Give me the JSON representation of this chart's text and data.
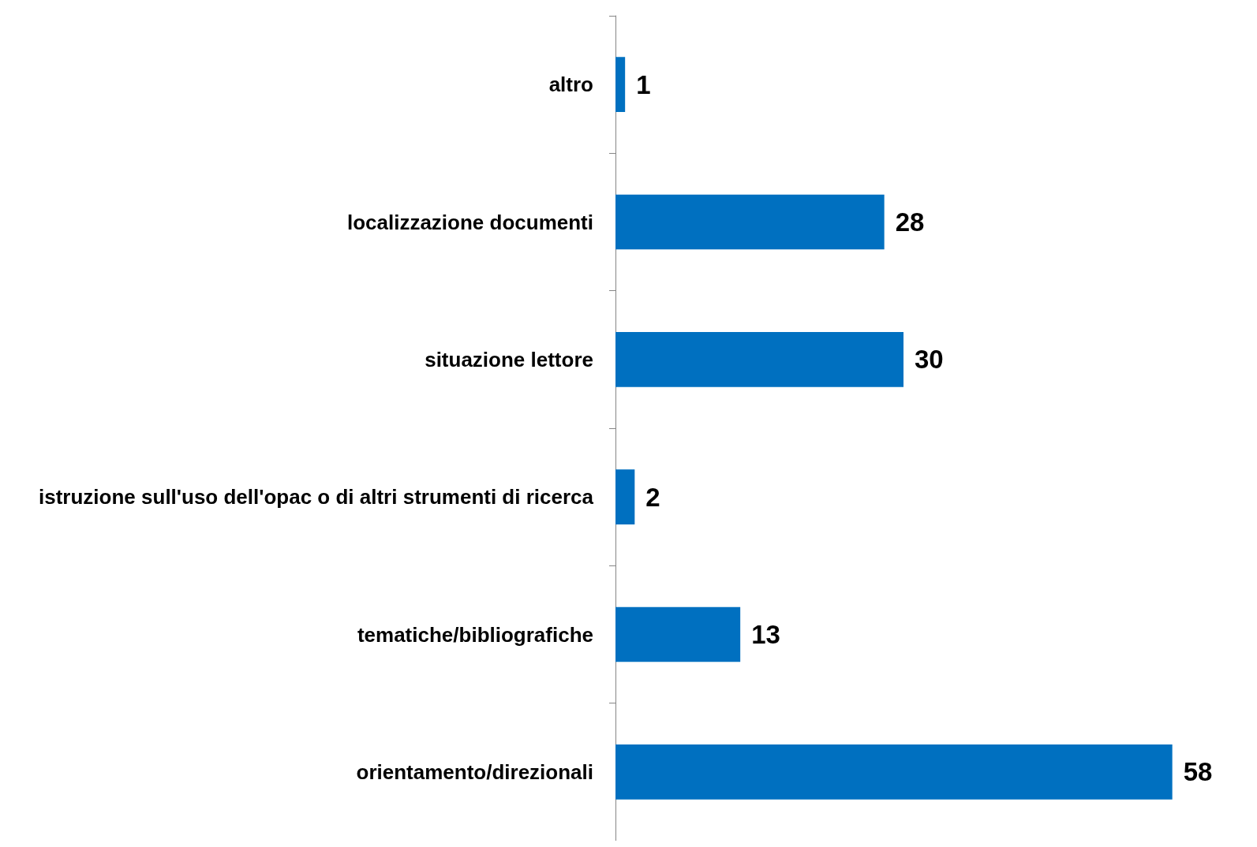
{
  "chart_data": {
    "type": "bar",
    "orientation": "horizontal",
    "categories": [
      "altro",
      "localizzazione documenti",
      "situazione lettore",
      "istruzione sull'uso dell'opac o di altri strumenti di ricerca",
      "tematiche/bibliografiche",
      "orientamento/direzionali"
    ],
    "values": [
      1,
      28,
      30,
      2,
      13,
      58
    ],
    "color": "#0070c0",
    "data_labels": true
  }
}
